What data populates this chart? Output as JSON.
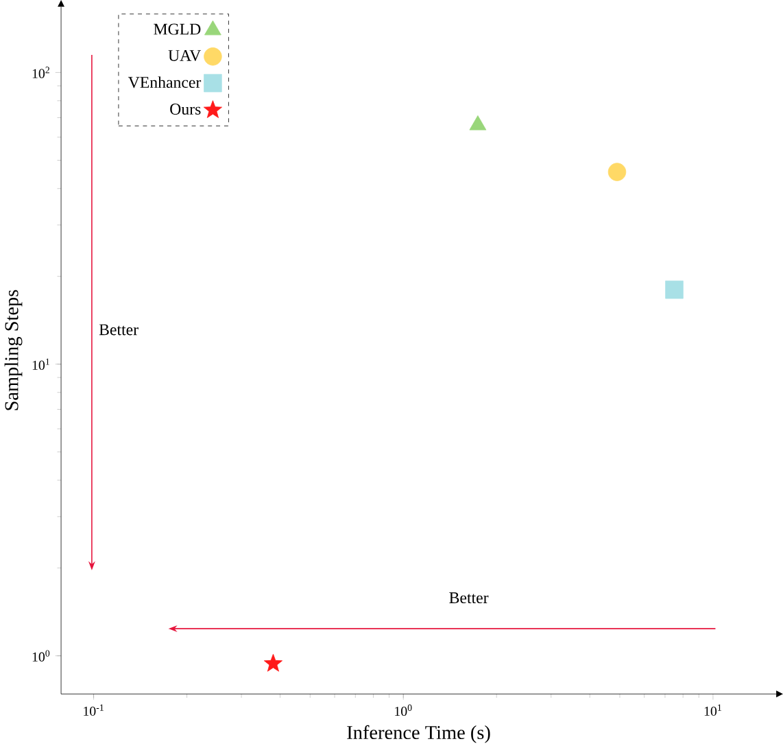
{
  "chart_data": {
    "type": "scatter",
    "xlabel": "Inference Time (s)",
    "ylabel": "Sampling Steps",
    "log": "xy",
    "xlim": [
      0.0785,
      16
    ],
    "ylim": [
      0.74,
      168
    ],
    "xticks": [
      {
        "value": 0.1,
        "label": "10$^{-1}$"
      },
      {
        "value": 1,
        "label": "10$^{0}$"
      },
      {
        "value": 10,
        "label": "10$^{1}$"
      }
    ],
    "yticks": [
      {
        "value": 1,
        "label": "10$^{0}$"
      },
      {
        "value": 10,
        "label": "10$^{1}$"
      },
      {
        "value": 100,
        "label": "10$^{2}$"
      }
    ],
    "legend": "top left",
    "grid": false,
    "annotations": [
      "Better",
      "Better"
    ],
    "series": [
      {
        "name": "MGLD",
        "color": "#99d67a",
        "marker": "triangle",
        "x": [
          1.74
        ],
        "values": [
          66
        ]
      },
      {
        "name": "UAV",
        "color": "#ffd966",
        "marker": "circle",
        "x": [
          4.9
        ],
        "values": [
          45.6
        ]
      },
      {
        "name": "VEnhancer",
        "color": "#a8e0e6",
        "marker": "square",
        "x": [
          7.5
        ],
        "values": [
          18
        ]
      },
      {
        "name": "Ours",
        "color": "#ff1a1a",
        "marker": "star",
        "x": [
          0.38
        ],
        "values": [
          0.94
        ]
      }
    ]
  }
}
